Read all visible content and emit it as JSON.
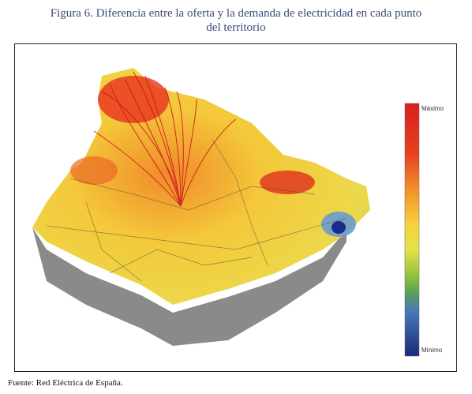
{
  "figure": {
    "title_lines": [
      "Figura 6. Diferencia entre la oferta y la demanda de electricidad en cada punto",
      "del territorio"
    ],
    "legend": {
      "max_label": "Máximo",
      "min_label": "Mínimo"
    },
    "source": "Fuente: Red Eléctrica de España."
  }
}
